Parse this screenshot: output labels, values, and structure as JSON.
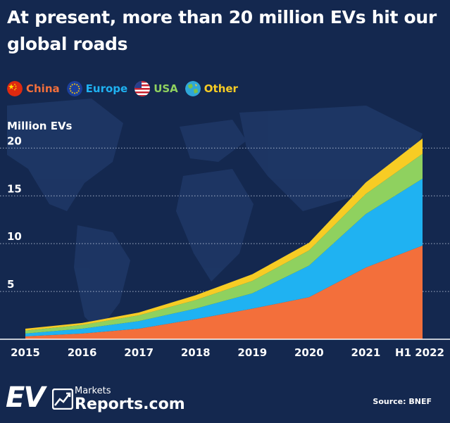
{
  "title": "At present, more than 20 million EVs hit our global roads",
  "legend": [
    {
      "name": "China",
      "color": "#f36f3b",
      "icon": "china-flag-icon"
    },
    {
      "name": "Europe",
      "color": "#1fb2f2",
      "icon": "eu-flag-icon"
    },
    {
      "name": "USA",
      "color": "#8fd15f",
      "icon": "usa-flag-icon"
    },
    {
      "name": "Other",
      "color": "#f7cc24",
      "icon": "globe-icon"
    }
  ],
  "ylabel": "Million EVs",
  "logo": {
    "ev": "EV",
    "markets": "Markets",
    "reports": "Reports.com"
  },
  "source": "Source: BNEF",
  "chart_data": {
    "type": "area",
    "stacked": true,
    "title": "At present, more than 20 million EVs hit our global roads",
    "ylabel": "Million EVs",
    "xlabel": "",
    "categories": [
      "2015",
      "2016",
      "2017",
      "2018",
      "2019",
      "2020",
      "2021",
      "H1 2022"
    ],
    "y_ticks": [
      5,
      10,
      15,
      20
    ],
    "ylim": [
      0,
      21.5
    ],
    "grid": "horizontal dotted",
    "legend_position": "top-left",
    "series": [
      {
        "name": "China",
        "color": "#f36f3b",
        "values": [
          0.3,
          0.6,
          1.1,
          2.1,
          3.2,
          4.4,
          7.5,
          9.8
        ]
      },
      {
        "name": "Europe",
        "color": "#1fb2f2",
        "values": [
          0.3,
          0.5,
          0.8,
          1.1,
          1.6,
          3.3,
          5.6,
          7.0
        ]
      },
      {
        "name": "USA",
        "color": "#8fd15f",
        "values": [
          0.3,
          0.4,
          0.6,
          0.9,
          1.3,
          1.6,
          2.1,
          2.6
        ]
      },
      {
        "name": "Other",
        "color": "#f7cc24",
        "values": [
          0.2,
          0.2,
          0.3,
          0.5,
          0.7,
          0.8,
          1.2,
          1.6
        ]
      }
    ]
  }
}
